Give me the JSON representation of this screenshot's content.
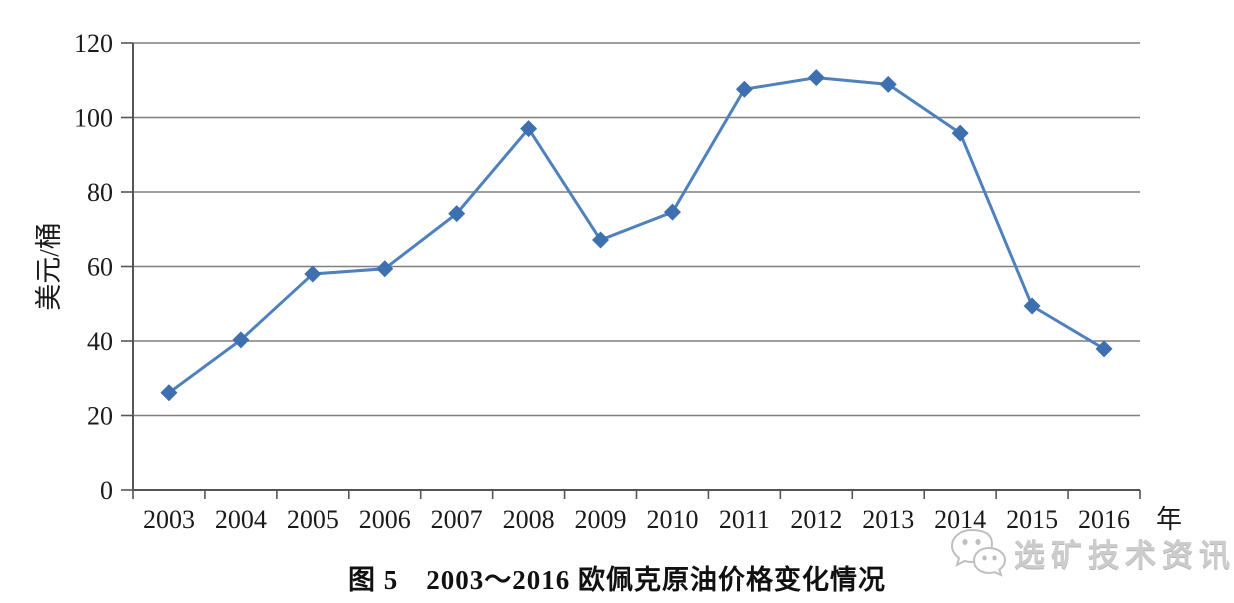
{
  "chart_data": {
    "type": "line",
    "title": "图 5　2003～2016 欧佩克原油价格变化情况",
    "categories": [
      "2003",
      "2004",
      "2005",
      "2006",
      "2007",
      "2008",
      "2009",
      "2010",
      "2011",
      "2012",
      "2013",
      "2014",
      "2015",
      "2016"
    ],
    "series": [
      {
        "name": "欧佩克原油价格",
        "values": [
          26.1,
          40.3,
          58.0,
          59.4,
          74.2,
          97.0,
          67.1,
          74.6,
          107.6,
          110.7,
          108.9,
          95.8,
          49.4,
          37.9
        ]
      }
    ],
    "ylabel": "美元/桶",
    "xlabel": "年",
    "ylim": [
      0,
      120
    ],
    "yticks": [
      0,
      20,
      40,
      60,
      80,
      100,
      120
    ],
    "grid": "horizontal",
    "legend_position": "none",
    "line_color": "#4f81bd",
    "marker_color": "#3e6fae",
    "marker_shape": "diamond",
    "gridline_color": "#7f7f7f",
    "axis_color": "#555555",
    "text_color": "#1a1a1a"
  },
  "caption": {
    "text": "图 5　2003～2016 欧佩克原油价格变化情况"
  },
  "watermark": {
    "icon": "wechat-icon",
    "text": "选矿技术资讯",
    "color": "#cccccc"
  }
}
